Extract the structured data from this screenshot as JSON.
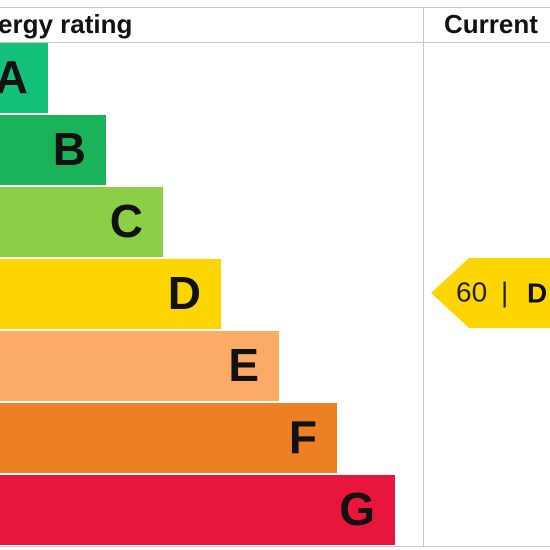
{
  "header": {
    "rating_title": "ergy rating",
    "current_title": "Current"
  },
  "bands": [
    "A",
    "B",
    "C",
    "D",
    "E",
    "F",
    "G"
  ],
  "current": {
    "score": 60,
    "separator": "|",
    "band": "D"
  }
}
